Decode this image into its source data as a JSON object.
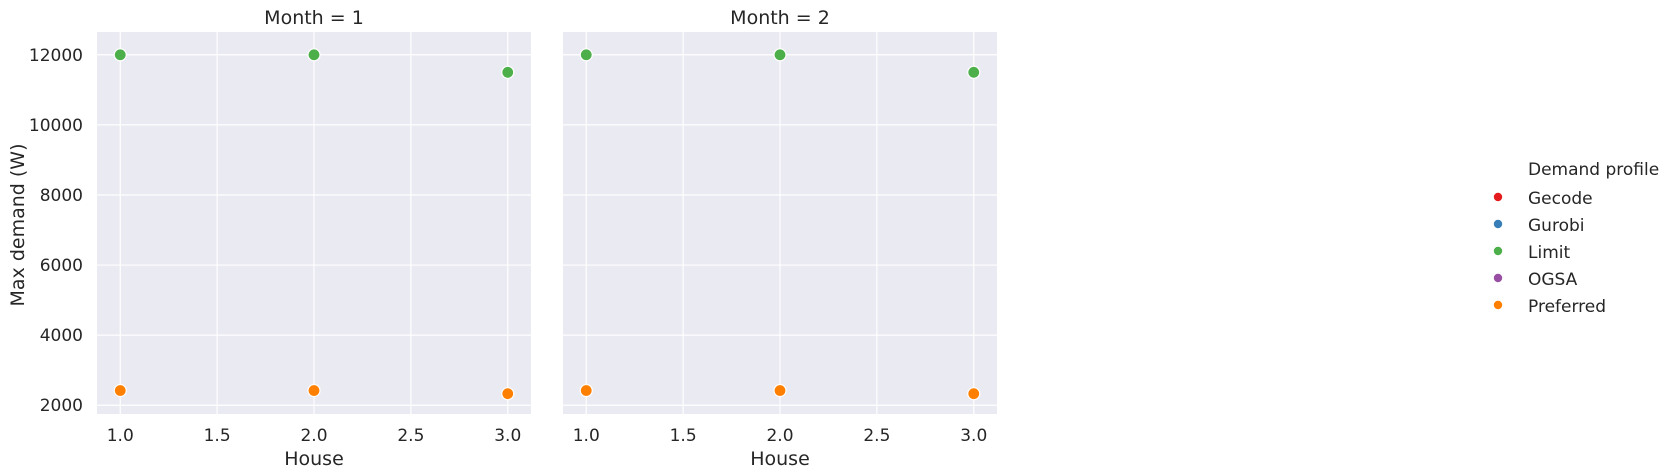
{
  "chart_data": {
    "type": "scatter",
    "x_label": "House",
    "y_label": "Max demand (W)",
    "x_ticks": [
      "1.0",
      "1.5",
      "2.0",
      "2.5",
      "3.0"
    ],
    "y_ticks": [
      "2000",
      "4000",
      "6000",
      "8000",
      "10000",
      "12000"
    ],
    "xlim": [
      0.88,
      3.12
    ],
    "ylim": [
      1750,
      12650
    ],
    "grid": true,
    "legend": {
      "title": "Demand profile",
      "placement": "right",
      "entries": [
        {
          "name": "Gecode",
          "color": "#e41a1c"
        },
        {
          "name": "Gurobi",
          "color": "#377eb8"
        },
        {
          "name": "Limit",
          "color": "#4daf4a"
        },
        {
          "name": "OGSA",
          "color": "#984ea3"
        },
        {
          "name": "Preferred",
          "color": "#ff7f00"
        }
      ]
    },
    "panels": [
      {
        "title": "Month = 1",
        "series": [
          {
            "name": "Limit",
            "color": "#4daf4a",
            "x": [
              1.0,
              2.0,
              3.0
            ],
            "y": [
              12000,
              12000,
              11500
            ]
          },
          {
            "name": "Preferred",
            "color": "#ff7f00",
            "x": [
              1.0,
              2.0,
              3.0
            ],
            "y": [
              2420,
              2420,
              2330
            ]
          }
        ]
      },
      {
        "title": "Month = 2",
        "series": [
          {
            "name": "Limit",
            "color": "#4daf4a",
            "x": [
              1.0,
              2.0,
              3.0
            ],
            "y": [
              12000,
              12000,
              11500
            ]
          },
          {
            "name": "Preferred",
            "color": "#ff7f00",
            "x": [
              1.0,
              2.0,
              3.0
            ],
            "y": [
              2420,
              2420,
              2330
            ]
          }
        ]
      }
    ]
  }
}
